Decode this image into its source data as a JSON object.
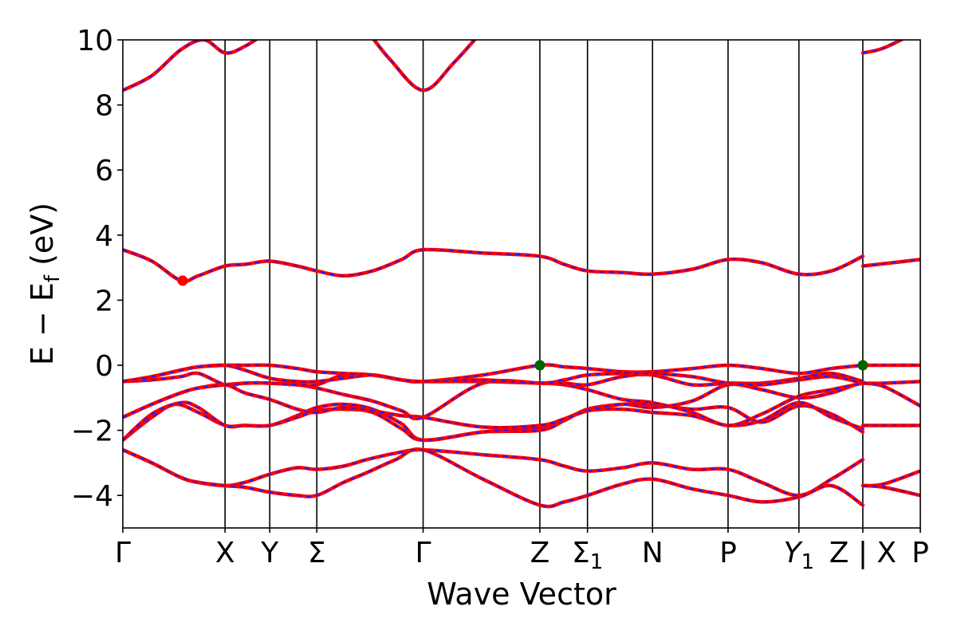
{
  "chart_data": {
    "type": "line",
    "xlabel": "Wave Vector",
    "ylabel": "E − E_f (eV)",
    "ylabel_parts": {
      "main": "E − E",
      "sub": "f",
      "unit": " (eV)"
    },
    "ylim": [
      -5,
      10
    ],
    "yticks": [
      {
        "value": -4,
        "label": "−4"
      },
      {
        "value": -2,
        "label": "−2"
      },
      {
        "value": 0,
        "label": "0"
      },
      {
        "value": 2,
        "label": "2"
      },
      {
        "value": 4,
        "label": "4"
      },
      {
        "value": 6,
        "label": "6"
      },
      {
        "value": 8,
        "label": "8"
      },
      {
        "value": 10,
        "label": "10"
      }
    ],
    "xlim": [
      0,
      13.73
    ],
    "high_symmetry_points": [
      {
        "x": 0.0,
        "label": "Γ"
      },
      {
        "x": 1.76,
        "label": "X"
      },
      {
        "x": 2.53,
        "label": "Y"
      },
      {
        "x": 3.34,
        "label": "Σ"
      },
      {
        "x": 5.17,
        "label": "Γ"
      },
      {
        "x": 7.18,
        "label": "Z"
      },
      {
        "x": 8.0,
        "label": "Σ",
        "sub": "1"
      },
      {
        "x": 9.12,
        "label": "N"
      },
      {
        "x": 10.42,
        "label": "P"
      },
      {
        "x": 11.64,
        "label": "Y",
        "sub": "1",
        "italic": true
      },
      {
        "x": 12.74,
        "label": "Z | X"
      },
      {
        "x": 13.73,
        "label": "P"
      }
    ],
    "series_style": {
      "primary": "#ff0000",
      "overlay": "#1a1aff",
      "overlay_dashed": true
    },
    "bands": [
      {
        "x": [
          0,
          0.5,
          1.0,
          1.3,
          1.76,
          2.1,
          2.53,
          3.0,
          3.34,
          3.8,
          4.2,
          4.7,
          5.17,
          6.2,
          7.18,
          7.6,
          8.0,
          8.6,
          9.12,
          9.8,
          10.42,
          11.0,
          11.64,
          12.2,
          12.74
        ],
        "y": [
          -2.6,
          -3.0,
          -3.45,
          -3.6,
          -3.7,
          -3.6,
          -3.35,
          -3.15,
          -3.2,
          -3.1,
          -2.9,
          -2.7,
          -2.6,
          -2.75,
          -2.9,
          -3.1,
          -3.25,
          -3.15,
          -3.0,
          -3.2,
          -3.2,
          -3.6,
          -4.0,
          -3.5,
          -2.9
        ]
      },
      {
        "x": [
          0,
          0.5,
          1.0,
          1.3,
          1.76,
          2.1,
          2.53,
          3.0,
          3.34,
          3.8,
          4.2,
          4.7,
          5.17,
          6.2,
          7.18,
          7.6,
          8.0,
          8.6,
          9.12,
          9.8,
          10.42,
          11.0,
          11.64,
          12.2,
          12.74
        ],
        "y": [
          -2.6,
          -3.0,
          -3.45,
          -3.6,
          -3.7,
          -3.75,
          -3.9,
          -4.0,
          -4.0,
          -3.6,
          -3.3,
          -2.9,
          -2.6,
          -3.5,
          -4.3,
          -4.2,
          -4.0,
          -3.65,
          -3.5,
          -3.8,
          -4.0,
          -4.2,
          -4.05,
          -3.7,
          -4.3
        ]
      },
      {
        "x": [
          0,
          0.5,
          0.9,
          1.3,
          1.76,
          2.1,
          2.53,
          3.0,
          3.34,
          3.8,
          4.3,
          4.8,
          5.17,
          6.2,
          7.18,
          7.6,
          8.0,
          8.6,
          9.12,
          9.8,
          10.42,
          11.0,
          11.64,
          12.2,
          12.74
        ],
        "y": [
          -2.3,
          -1.6,
          -1.2,
          -1.45,
          -1.85,
          -1.85,
          -1.85,
          -1.55,
          -1.3,
          -1.2,
          -1.35,
          -1.8,
          -2.3,
          -2.05,
          -2.0,
          -1.7,
          -1.35,
          -1.2,
          -1.2,
          -1.35,
          -1.3,
          -1.75,
          -1.25,
          -1.5,
          -2.05
        ]
      },
      {
        "x": [
          0,
          0.5,
          1.0,
          1.3,
          1.76,
          2.1,
          2.53,
          3.0,
          3.34,
          3.8,
          4.3,
          4.8,
          5.17,
          6.2,
          7.18,
          7.6,
          8.0,
          8.6,
          9.12,
          9.8,
          10.42,
          11.0,
          11.64,
          12.2,
          12.74
        ],
        "y": [
          -2.3,
          -1.5,
          -1.15,
          -1.3,
          -1.85,
          -1.85,
          -1.85,
          -1.6,
          -1.4,
          -1.35,
          -1.45,
          -1.95,
          -2.3,
          -2.05,
          -1.9,
          -1.65,
          -1.4,
          -1.35,
          -1.45,
          -1.55,
          -1.85,
          -1.7,
          -1.15,
          -1.6,
          -1.95
        ]
      },
      {
        "x": [
          0,
          0.5,
          1.0,
          1.3,
          1.76,
          2.1,
          2.53,
          3.0,
          3.34,
          3.8,
          4.3,
          4.8,
          5.17,
          6.2,
          7.18,
          7.6,
          8.0,
          8.6,
          9.12,
          9.8,
          10.42,
          11.0,
          11.64,
          12.2,
          12.74
        ],
        "y": [
          -1.6,
          -1.2,
          -0.85,
          -0.7,
          -0.6,
          -0.85,
          -1.05,
          -1.35,
          -1.45,
          -1.3,
          -1.4,
          -1.55,
          -1.6,
          -1.9,
          -1.85,
          -1.65,
          -1.4,
          -1.2,
          -1.3,
          -1.1,
          -0.6,
          -0.75,
          -1.0,
          -0.85,
          -0.5
        ]
      },
      {
        "x": [
          0,
          0.5,
          1.0,
          1.3,
          1.76,
          2.1,
          2.53,
          3.0,
          3.34,
          3.8,
          4.3,
          4.8,
          5.17,
          6.2,
          7.18,
          7.6,
          8.0,
          8.6,
          9.12,
          9.8,
          10.42,
          11.0,
          11.64,
          12.2,
          12.74
        ],
        "y": [
          -1.6,
          -1.2,
          -0.85,
          -0.7,
          -0.6,
          -0.55,
          -0.55,
          -0.6,
          -0.7,
          -0.9,
          -1.1,
          -1.4,
          -1.6,
          -0.55,
          -0.55,
          -0.6,
          -0.75,
          -1.05,
          -1.15,
          -1.45,
          -1.85,
          -1.5,
          -0.95,
          -0.75,
          -0.55
        ]
      },
      {
        "x": [
          0,
          0.5,
          1.0,
          1.3,
          1.76,
          2.1,
          2.53,
          3.0,
          3.34,
          3.8,
          4.3,
          4.8,
          5.17,
          6.2,
          7.18,
          7.6,
          8.0,
          8.6,
          9.12,
          9.8,
          10.42,
          11.0,
          11.64,
          12.2,
          12.74
        ],
        "y": [
          -0.5,
          -0.45,
          -0.35,
          -0.25,
          -0.6,
          -0.55,
          -0.55,
          -0.6,
          -0.6,
          -0.3,
          -0.3,
          -0.45,
          -0.5,
          -0.5,
          -0.55,
          -0.55,
          -0.6,
          -0.35,
          -0.3,
          -0.6,
          -0.55,
          -0.55,
          -0.4,
          -0.25,
          -0.5
        ]
      },
      {
        "x": [
          0,
          0.5,
          1.0,
          1.3,
          1.76,
          2.1,
          2.53,
          3.0,
          3.34,
          3.8,
          4.3,
          4.8,
          5.17,
          6.2,
          7.18,
          7.6,
          8.0,
          8.6,
          9.12,
          9.8,
          10.42,
          11.0,
          11.64,
          12.2,
          12.74
        ],
        "y": [
          -0.5,
          -0.35,
          -0.15,
          -0.05,
          0.0,
          0.0,
          0.0,
          -0.1,
          -0.2,
          -0.25,
          -0.3,
          -0.45,
          -0.5,
          -0.3,
          0.0,
          -0.05,
          -0.1,
          -0.2,
          -0.2,
          -0.1,
          0.0,
          -0.1,
          -0.25,
          -0.1,
          0.0
        ]
      },
      {
        "x": [
          0,
          0.5,
          1.0,
          1.3,
          1.76,
          2.1,
          2.53,
          3.0,
          3.34,
          3.8,
          4.3,
          4.8,
          5.17,
          6.2,
          7.18,
          7.6,
          8.0,
          8.6,
          9.12,
          9.8,
          10.42,
          11.0,
          11.64,
          12.2,
          12.74
        ],
        "y": [
          -0.5,
          -0.35,
          -0.15,
          -0.05,
          0.0,
          -0.15,
          -0.4,
          -0.5,
          -0.5,
          -0.4,
          -0.3,
          -0.45,
          -0.5,
          -0.45,
          -0.55,
          -0.45,
          -0.3,
          -0.25,
          -0.25,
          -0.35,
          -0.55,
          -0.6,
          -0.45,
          -0.35,
          -0.55
        ]
      },
      {
        "x": [
          0,
          0.5,
          1.0,
          1.3,
          1.76,
          2.1,
          2.53,
          3.0,
          3.34,
          3.8,
          4.3,
          4.8,
          5.17,
          6.2,
          7.18,
          7.6,
          8.0,
          8.6,
          9.12,
          9.8,
          10.42,
          11.0,
          11.64,
          12.2,
          12.74
        ],
        "y": [
          3.55,
          3.2,
          2.6,
          2.75,
          3.05,
          3.1,
          3.2,
          3.05,
          2.9,
          2.75,
          2.9,
          3.25,
          3.55,
          3.45,
          3.35,
          3.1,
          2.9,
          2.85,
          2.8,
          2.95,
          3.25,
          3.15,
          2.8,
          2.9,
          3.35
        ]
      },
      {
        "x": [
          0,
          0.5,
          1.0,
          1.4,
          1.76,
          2.1,
          2.53
        ],
        "y": [
          8.45,
          8.9,
          9.7,
          10.0,
          9.6,
          9.8,
          10.3
        ]
      },
      {
        "x": [
          4.2,
          4.6,
          5.17,
          5.7,
          6.2
        ],
        "y": [
          10.3,
          9.4,
          8.45,
          9.3,
          10.3
        ]
      },
      {
        "x": [
          12.74,
          13.0,
          13.73
        ],
        "y": [
          3.05,
          3.1,
          3.25
        ]
      },
      {
        "x": [
          12.74,
          13.1,
          13.73
        ],
        "y": [
          0.0,
          0.0,
          0.0
        ]
      },
      {
        "x": [
          12.74,
          13.1,
          13.73
        ],
        "y": [
          -0.55,
          -0.55,
          -0.5
        ]
      },
      {
        "x": [
          12.74,
          13.1,
          13.73
        ],
        "y": [
          -0.55,
          -0.65,
          -1.25
        ]
      },
      {
        "x": [
          12.74,
          13.1,
          13.73
        ],
        "y": [
          -1.85,
          -1.85,
          -1.85
        ]
      },
      {
        "x": [
          12.74,
          13.1,
          13.73
        ],
        "y": [
          -3.7,
          -3.65,
          -3.25
        ]
      },
      {
        "x": [
          12.74,
          13.1,
          13.73
        ],
        "y": [
          -3.7,
          -3.75,
          -4.0
        ]
      },
      {
        "x": [
          12.74,
          13.1,
          13.73
        ],
        "y": [
          9.6,
          9.75,
          10.3
        ]
      }
    ],
    "markers": [
      {
        "x": 1.03,
        "y": 2.6,
        "color": "#ff0000",
        "name": "CBM"
      },
      {
        "x": 7.18,
        "y": 0.0,
        "color": "#006400",
        "name": "VBM"
      },
      {
        "x": 12.74,
        "y": 0.0,
        "color": "#006400",
        "name": "VBM"
      }
    ]
  }
}
